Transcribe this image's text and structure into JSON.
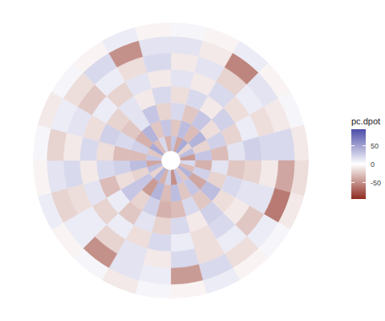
{
  "chart_data": {
    "type": "polar_heatmap",
    "legend_title": "pc.dpot",
    "tick_labels": false,
    "r_bins": [
      0.07,
      0.18,
      0.3,
      0.42,
      0.54,
      0.66,
      0.78,
      0.9,
      1.0
    ],
    "theta_bins": [
      0,
      15,
      30,
      45,
      60,
      75,
      90,
      105,
      120,
      135,
      150,
      165,
      180,
      195,
      210,
      225,
      240,
      255,
      270,
      285,
      300,
      315,
      330,
      345,
      360
    ],
    "values": [
      [
        30,
        -40,
        45,
        -20,
        35,
        -45,
        20,
        -30,
        40,
        -25,
        30,
        -50,
        25,
        -35,
        40,
        -20,
        35,
        -40,
        30,
        -25,
        45,
        -30,
        20,
        -35
      ],
      [
        -25,
        35,
        -30,
        40,
        -20,
        30,
        -35,
        25,
        -40,
        30,
        -25,
        35,
        -30,
        40,
        -45,
        30,
        -20,
        35,
        -30,
        25,
        -35,
        40,
        -25,
        30
      ],
      [
        20,
        -25,
        30,
        -15,
        25,
        -30,
        15,
        -20,
        35,
        -25,
        20,
        -30,
        -35,
        25,
        -20,
        30,
        -15,
        25,
        -30,
        20,
        -25,
        15,
        30,
        -20
      ],
      [
        -15,
        20,
        -10,
        25,
        -20,
        15,
        -25,
        20,
        -15,
        25,
        -10,
        20,
        -20,
        15,
        -25,
        10,
        -30,
        20,
        -15,
        25,
        -20,
        15,
        -10,
        20
      ],
      [
        15,
        -10,
        20,
        -15,
        10,
        25,
        -20,
        15,
        -10,
        20,
        -15,
        10,
        20,
        -15,
        10,
        -20,
        15,
        -10,
        20,
        -15,
        10,
        -20,
        15,
        -10
      ],
      [
        -10,
        15,
        -20,
        10,
        -15,
        20,
        -10,
        15,
        -25,
        10,
        -15,
        20,
        -10,
        15,
        -20,
        10,
        -15,
        20,
        -10,
        15,
        -25,
        10,
        -15,
        20
      ],
      [
        15,
        -10,
        -55,
        15,
        -10,
        20,
        -40,
        -60,
        10,
        -15,
        20,
        -45,
        10,
        15,
        -50,
        10,
        -20,
        15,
        -20,
        10,
        -15,
        20,
        -50,
        15
      ],
      [
        5,
        -5,
        10,
        -5,
        5,
        -10,
        -15,
        -10,
        5,
        -5,
        10,
        -5,
        5,
        -10,
        5,
        -5,
        10,
        -5,
        5,
        -10,
        5,
        -5,
        10,
        -5
      ]
    ],
    "colorbar": {
      "range": [
        -95,
        95
      ],
      "ticks": [
        -50,
        0,
        50
      ]
    }
  }
}
